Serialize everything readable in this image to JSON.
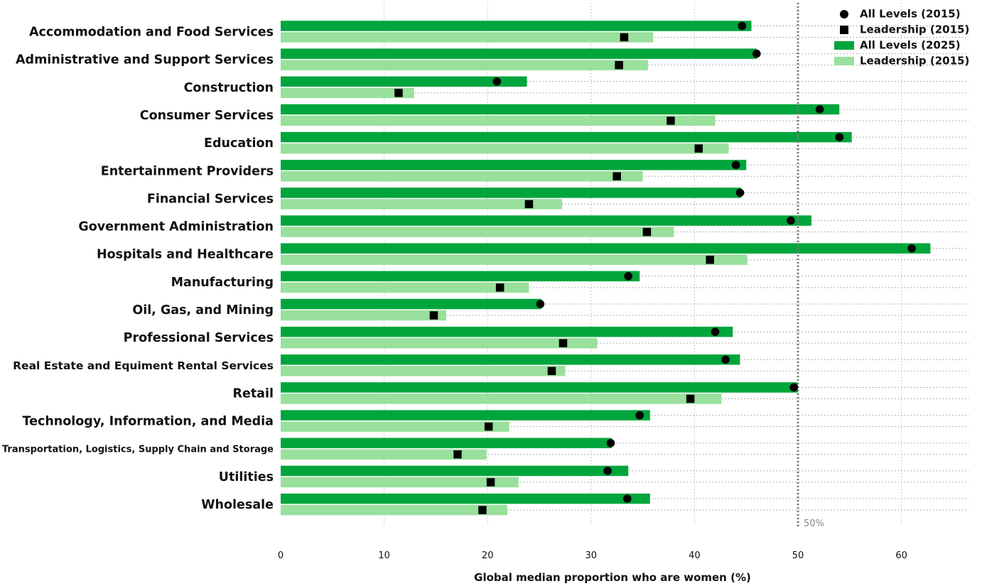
{
  "chart_data": {
    "type": "bar",
    "orientation": "horizontal",
    "categories": [
      "Accommodation and Food Services",
      "Administrative and Support Services",
      "Construction",
      "Consumer Services",
      "Education",
      "Entertainment Providers",
      "Financial Services",
      "Government Administration",
      "Hospitals and Healthcare",
      "Manufacturing",
      "Oil, Gas, and Mining",
      "Professional Services",
      "Real Estate and Equiment Rental Services",
      "Retail",
      "Technology, Information, and Media",
      "Transportation, Logistics, Supply Chain and Storage",
      "Utilities",
      "Wholesale"
    ],
    "series": [
      {
        "name": "All Levels (2025)",
        "mark": "bar",
        "color": "#00a53c",
        "values": [
          45.5,
          46.0,
          23.8,
          54.0,
          55.2,
          45.0,
          44.5,
          51.3,
          62.8,
          34.7,
          25.2,
          43.7,
          44.4,
          50.0,
          35.7,
          32.0,
          33.6,
          35.7
        ]
      },
      {
        "name": "Leadership (2015)",
        "mark": "bar",
        "color": "#99e09c",
        "values": [
          36.0,
          35.5,
          12.9,
          42.0,
          43.3,
          35.0,
          27.2,
          38.0,
          45.1,
          24.0,
          16.0,
          30.6,
          27.5,
          42.6,
          22.1,
          19.9,
          23.0,
          21.9
        ]
      },
      {
        "name": "All Levels (2015)",
        "mark": "circle",
        "color": "#000000",
        "values": [
          44.6,
          46.0,
          20.9,
          52.1,
          54.0,
          44.0,
          44.4,
          49.3,
          61.0,
          33.6,
          25.1,
          42.0,
          43.0,
          49.6,
          34.7,
          31.9,
          31.6,
          33.5
        ]
      },
      {
        "name": "Leadership (2015)",
        "mark": "square",
        "color": "#000000",
        "values": [
          33.2,
          32.7,
          11.4,
          37.7,
          40.4,
          32.5,
          24.0,
          35.4,
          41.5,
          21.2,
          14.8,
          27.3,
          26.2,
          39.6,
          20.1,
          17.1,
          20.3,
          19.5
        ]
      }
    ],
    "x_ticks": [
      0,
      10,
      20,
      30,
      40,
      50,
      60
    ],
    "xlim": [
      0,
      66.5
    ],
    "xlabel": "Global median proportion who are women (%)",
    "ylabel": "",
    "title": "",
    "reference_line": {
      "value": 50,
      "label": "50%",
      "color": "#7a7a7a"
    },
    "legend": {
      "position": "top-right",
      "entries": [
        {
          "label": "All Levels (2015)",
          "symbol": "circle",
          "color": "#000000"
        },
        {
          "label": "Leadership (2015)",
          "symbol": "square",
          "color": "#000000"
        },
        {
          "label": "All Levels (2025)",
          "symbol": "bar",
          "color": "#00a53c"
        },
        {
          "label": "Leadership (2015)",
          "symbol": "bar",
          "color": "#99e09c"
        }
      ]
    },
    "grid": {
      "x": true,
      "y": true,
      "style": "dotted"
    }
  }
}
